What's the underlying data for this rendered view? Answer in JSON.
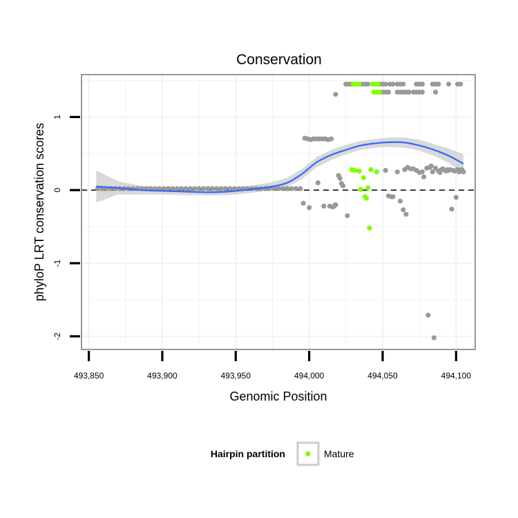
{
  "chart_data": {
    "type": "scatter",
    "title": "Conservation",
    "xlabel": "Genomic Position",
    "ylabel": "phyloP LRT conservation scores",
    "xlim": [
      493845,
      494113
    ],
    "ylim": [
      -2.18,
      1.58
    ],
    "x_ticks": [
      493850,
      493900,
      493950,
      494000,
      494050,
      494100
    ],
    "x_tick_labels": [
      "493,850",
      "493,900",
      "493,950",
      "494,000",
      "494,050",
      "494,100"
    ],
    "y_ticks": [
      -2,
      -1,
      0,
      1
    ],
    "y_tick_labels": [
      "-2",
      "-1",
      "0",
      "1"
    ],
    "grid": true,
    "reference_line": {
      "y": 0,
      "style": "dashed"
    },
    "colors": {
      "other": "#999999",
      "mature": "#7fff00",
      "smooth": "#3366ff",
      "band": "#cccccc",
      "panel_border": "#7f7f7f",
      "grid": "#f0f0f0"
    },
    "legend": {
      "title": "Hairpin partition",
      "position": "bottom",
      "entries": [
        {
          "label": "Mature",
          "color": "#7fff00"
        }
      ]
    },
    "series": [
      {
        "name": "",
        "color": "#999999",
        "points": [
          [
            493856,
            0.02
          ],
          [
            493859,
            0.02
          ],
          [
            493862,
            0.02
          ],
          [
            493865,
            0.02
          ],
          [
            493868,
            0.02
          ],
          [
            493871,
            0.02
          ],
          [
            493874,
            0.02
          ],
          [
            493877,
            0.02
          ],
          [
            493880,
            0.02
          ],
          [
            493883,
            0.02
          ],
          [
            493886,
            0.02
          ],
          [
            493889,
            0.02
          ],
          [
            493892,
            0.02
          ],
          [
            493895,
            0.02
          ],
          [
            493898,
            0.02
          ],
          [
            493901,
            0.02
          ],
          [
            493904,
            0.02
          ],
          [
            493907,
            0.02
          ],
          [
            493910,
            0.02
          ],
          [
            493913,
            0.02
          ],
          [
            493916,
            0.02
          ],
          [
            493919,
            0.02
          ],
          [
            493922,
            0.02
          ],
          [
            493925,
            0.02
          ],
          [
            493928,
            0.02
          ],
          [
            493931,
            0.02
          ],
          [
            493934,
            0.02
          ],
          [
            493937,
            0.02
          ],
          [
            493940,
            0.02
          ],
          [
            493943,
            0.02
          ],
          [
            493946,
            0.02
          ],
          [
            493949,
            0.02
          ],
          [
            493952,
            0.02
          ],
          [
            493955,
            0.02
          ],
          [
            493958,
            0.02
          ],
          [
            493961,
            0.02
          ],
          [
            493964,
            0.02
          ],
          [
            493967,
            0.02
          ],
          [
            493970,
            0.02
          ],
          [
            493973,
            0.02
          ],
          [
            493976,
            0.02
          ],
          [
            493979,
            0.02
          ],
          [
            493982,
            0.02
          ],
          [
            493985,
            0.02
          ],
          [
            493988,
            0.02
          ],
          [
            493991,
            0.02
          ],
          [
            493994,
            0.02
          ],
          [
            493997,
            0.71
          ],
          [
            493999,
            0.7
          ],
          [
            494001,
            0.69
          ],
          [
            494003,
            0.7
          ],
          [
            494005,
            0.7
          ],
          [
            494007,
            0.7
          ],
          [
            494009,
            0.7
          ],
          [
            494011,
            0.7
          ],
          [
            494013,
            0.69
          ],
          [
            494015,
            0.7
          ],
          [
            493996,
            -0.18
          ],
          [
            494000,
            -0.24
          ],
          [
            494006,
            0.1
          ],
          [
            494010,
            -0.22
          ],
          [
            494014,
            -0.22
          ],
          [
            494016,
            -0.23
          ],
          [
            494017,
            -0.22
          ],
          [
            494018,
            -0.2
          ],
          [
            494018,
            1.31
          ],
          [
            494020,
            0.2
          ],
          [
            494021,
            0.16
          ],
          [
            494022,
            0.09
          ],
          [
            494023,
            0.06
          ],
          [
            494026,
            -0.35
          ],
          [
            494025,
            1.45
          ],
          [
            494027,
            1.45
          ],
          [
            494029,
            1.45
          ],
          [
            494036,
            1.45
          ],
          [
            494038,
            1.45
          ],
          [
            494040,
            1.45
          ],
          [
            494048,
            1.45
          ],
          [
            494050,
            1.45
          ],
          [
            494052,
            1.45
          ],
          [
            494055,
            1.45
          ],
          [
            494057,
            1.45
          ],
          [
            494060,
            1.45
          ],
          [
            494062,
            1.45
          ],
          [
            494064,
            1.45
          ],
          [
            494073,
            1.45
          ],
          [
            494075,
            1.45
          ],
          [
            494077,
            1.45
          ],
          [
            494084,
            1.45
          ],
          [
            494086,
            1.45
          ],
          [
            494088,
            1.45
          ],
          [
            494095,
            1.45
          ],
          [
            494101,
            1.45
          ],
          [
            494103,
            1.45
          ],
          [
            494050,
            1.34
          ],
          [
            494052,
            1.34
          ],
          [
            494054,
            1.34
          ],
          [
            494060,
            1.34
          ],
          [
            494062,
            1.34
          ],
          [
            494064,
            1.34
          ],
          [
            494066,
            1.34
          ],
          [
            494068,
            1.34
          ],
          [
            494071,
            1.34
          ],
          [
            494073,
            1.34
          ],
          [
            494075,
            1.34
          ],
          [
            494077,
            1.34
          ],
          [
            494086,
            1.34
          ],
          [
            494052,
            0.27
          ],
          [
            494054,
            -0.08
          ],
          [
            494056,
            -0.09
          ],
          [
            494057,
            -0.09
          ],
          [
            494060,
            0.25
          ],
          [
            494062,
            -0.15
          ],
          [
            494064,
            -0.27
          ],
          [
            494065,
            0.28
          ],
          [
            494066,
            -0.33
          ],
          [
            494067,
            0.31
          ],
          [
            494069,
            0.29
          ],
          [
            494071,
            0.29
          ],
          [
            494073,
            0.27
          ],
          [
            494075,
            0.24
          ],
          [
            494077,
            0.25
          ],
          [
            494078,
            0.18
          ],
          [
            494080,
            0.3
          ],
          [
            494081,
            -1.71
          ],
          [
            494082,
            0.31
          ],
          [
            494083,
            0.33
          ],
          [
            494084,
            0.25
          ],
          [
            494085,
            -2.02
          ],
          [
            494086,
            0.3
          ],
          [
            494088,
            0.26
          ],
          [
            494089,
            0.24
          ],
          [
            494090,
            0.28
          ],
          [
            494091,
            0.29
          ],
          [
            494093,
            0.26
          ],
          [
            494094,
            0.28
          ],
          [
            494095,
            0.27
          ],
          [
            494096,
            0.28
          ],
          [
            494097,
            -0.26
          ],
          [
            494098,
            0.27
          ],
          [
            494099,
            0.26
          ],
          [
            494100,
            -0.1
          ],
          [
            494101,
            0.28
          ],
          [
            494102,
            0.25
          ],
          [
            494103,
            0.26
          ],
          [
            494104,
            0.28
          ],
          [
            494105,
            0.25
          ]
        ]
      },
      {
        "name": "Mature",
        "color": "#7fff00",
        "points": [
          [
            494030,
            1.45
          ],
          [
            494032,
            1.45
          ],
          [
            494034,
            1.45
          ],
          [
            494043,
            1.45
          ],
          [
            494045,
            1.45
          ],
          [
            494047,
            1.45
          ],
          [
            494044,
            1.34
          ],
          [
            494046,
            1.34
          ],
          [
            494048,
            1.34
          ],
          [
            494029,
            0.28
          ],
          [
            494031,
            0.27
          ],
          [
            494034,
            0.26
          ],
          [
            494035,
            0.01
          ],
          [
            494037,
            0.17
          ],
          [
            494038,
            -0.09
          ],
          [
            494039,
            -0.11
          ],
          [
            494040,
            0.03
          ],
          [
            494041,
            -0.52
          ],
          [
            494042,
            0.28
          ],
          [
            494046,
            0.25
          ]
        ]
      }
    ],
    "smooth": {
      "x": [
        493855,
        493870,
        493885,
        493900,
        493915,
        493930,
        493945,
        493960,
        493975,
        493985,
        493995,
        494005,
        494015,
        494025,
        494035,
        494045,
        494055,
        494065,
        494075,
        494085,
        494095,
        494105
      ],
      "y": [
        0.05,
        0.03,
        0.0,
        -0.01,
        -0.02,
        -0.03,
        -0.02,
        0.01,
        0.05,
        0.1,
        0.22,
        0.38,
        0.48,
        0.55,
        0.61,
        0.64,
        0.655,
        0.65,
        0.61,
        0.55,
        0.47,
        0.36
      ],
      "lo": [
        -0.17,
        -0.06,
        -0.06,
        -0.06,
        -0.07,
        -0.07,
        -0.07,
        -0.04,
        0.0,
        0.04,
        0.15,
        0.31,
        0.41,
        0.49,
        0.55,
        0.58,
        0.59,
        0.58,
        0.54,
        0.47,
        0.37,
        0.23
      ],
      "hi": [
        0.27,
        0.12,
        0.06,
        0.04,
        0.03,
        0.02,
        0.03,
        0.06,
        0.11,
        0.17,
        0.29,
        0.45,
        0.55,
        0.62,
        0.67,
        0.7,
        0.72,
        0.72,
        0.69,
        0.63,
        0.57,
        0.49
      ]
    }
  }
}
